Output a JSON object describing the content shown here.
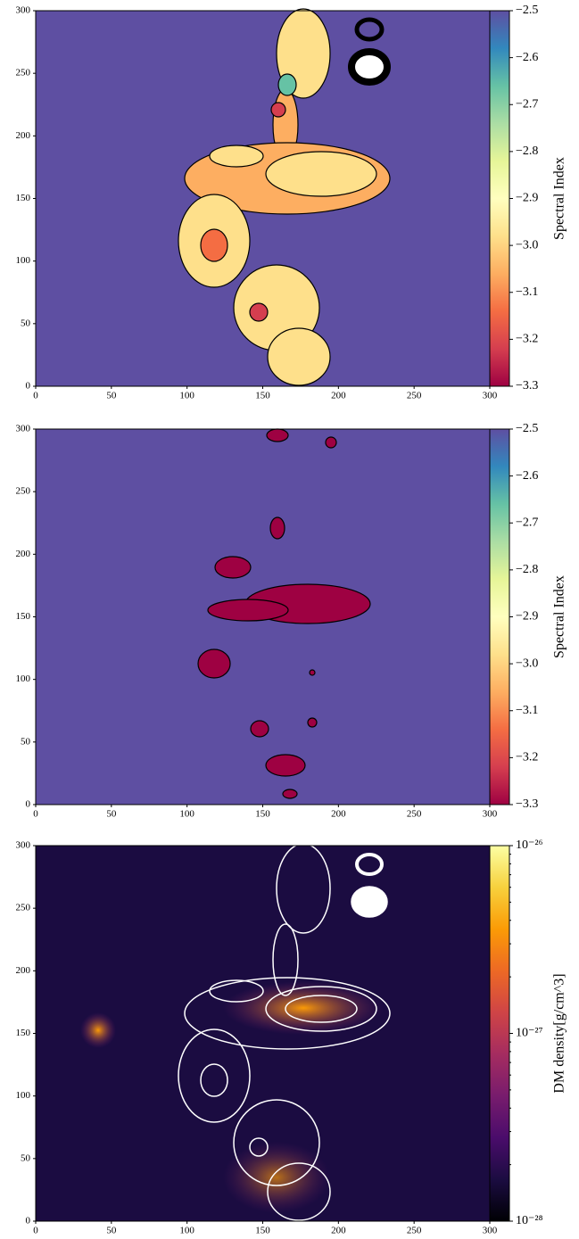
{
  "chart_data": [
    {
      "type": "heatmap",
      "xlim": [
        0,
        300
      ],
      "ylim": [
        0,
        300
      ],
      "xticks": [
        0,
        50,
        100,
        150,
        200,
        250,
        300
      ],
      "yticks": [
        0,
        50,
        100,
        150,
        200,
        250,
        300
      ],
      "background": "#5e4fa2",
      "colorbar": {
        "label": "Spectral Index",
        "lim": [
          -3.3,
          -2.5
        ],
        "log": false,
        "ticks": [
          {
            "value": -2.5,
            "label": "−2.5"
          },
          {
            "value": -2.6,
            "label": "−2.6"
          },
          {
            "value": -2.7,
            "label": "−2.7"
          },
          {
            "value": -2.8,
            "label": "−2.8"
          },
          {
            "value": -2.9,
            "label": "−2.9"
          },
          {
            "value": -3.0,
            "label": "−3.0"
          },
          {
            "value": -3.1,
            "label": "−3.1"
          },
          {
            "value": -3.2,
            "label": "−3.2"
          },
          {
            "value": -3.3,
            "label": "−3.3"
          }
        ],
        "colors": [
          "#9e0142",
          "#d53e4f",
          "#f46d43",
          "#fdae61",
          "#fee08b",
          "#ffffbf",
          "#e6f598",
          "#abdda4",
          "#66c2a5",
          "#3288bd",
          "#5e4fa2"
        ]
      }
    },
    {
      "type": "heatmap",
      "xlim": [
        0,
        300
      ],
      "ylim": [
        0,
        300
      ],
      "xticks": [
        0,
        50,
        100,
        150,
        200,
        250,
        300
      ],
      "yticks": [
        0,
        50,
        100,
        150,
        200,
        250,
        300
      ],
      "background": "#5e4fa2",
      "colorbar": {
        "label": "Spectral Index",
        "lim": [
          -3.3,
          -2.5
        ],
        "log": false,
        "ticks": [
          {
            "value": -2.5,
            "label": "−2.5"
          },
          {
            "value": -2.6,
            "label": "−2.6"
          },
          {
            "value": -2.7,
            "label": "−2.7"
          },
          {
            "value": -2.8,
            "label": "−2.8"
          },
          {
            "value": -2.9,
            "label": "−2.9"
          },
          {
            "value": -3.0,
            "label": "−3.0"
          },
          {
            "value": -3.1,
            "label": "−3.1"
          },
          {
            "value": -3.2,
            "label": "−3.2"
          },
          {
            "value": -3.3,
            "label": "−3.3"
          }
        ],
        "colors": [
          "#9e0142",
          "#d53e4f",
          "#f46d43",
          "#fdae61",
          "#fee08b",
          "#ffffbf",
          "#e6f598",
          "#abdda4",
          "#66c2a5",
          "#3288bd",
          "#5e4fa2"
        ]
      }
    },
    {
      "type": "heatmap",
      "xlim": [
        0,
        300
      ],
      "ylim": [
        0,
        300
      ],
      "xticks": [
        0,
        50,
        100,
        150,
        200,
        250,
        300
      ],
      "yticks": [
        0,
        50,
        100,
        150,
        200,
        250,
        300
      ],
      "background": "#1b0c41",
      "colorbar": {
        "label": "DM density[g/cm^3]",
        "lim": [
          1e-28,
          1e-26
        ],
        "log": true,
        "ticks": [
          {
            "value": 1e-26,
            "label": "10⁻²⁶"
          },
          {
            "value": 1e-27,
            "label": "10⁻²⁷"
          },
          {
            "value": 1e-28,
            "label": "10⁻²⁸"
          }
        ],
        "colors": [
          "#000004",
          "#1b0c41",
          "#4a0c6b",
          "#781c6d",
          "#a52c60",
          "#cf4446",
          "#ed6925",
          "#fb9b06",
          "#f7d13d",
          "#fcffa4"
        ]
      }
    }
  ]
}
